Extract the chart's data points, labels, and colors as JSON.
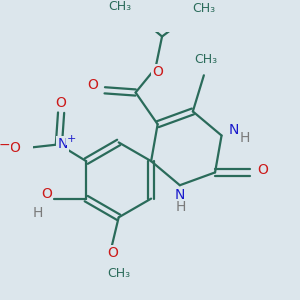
{
  "bg_color": "#dce6ec",
  "bond_color": "#2a6b5a",
  "N_color": "#1a1acc",
  "O_color": "#cc1a1a",
  "H_color": "#7a7a7a",
  "bond_lw": 1.6,
  "figsize": [
    3.0,
    3.0
  ],
  "dpi": 100,
  "xlim": [
    -2.5,
    3.5
  ],
  "ylim": [
    -3.2,
    2.8
  ]
}
